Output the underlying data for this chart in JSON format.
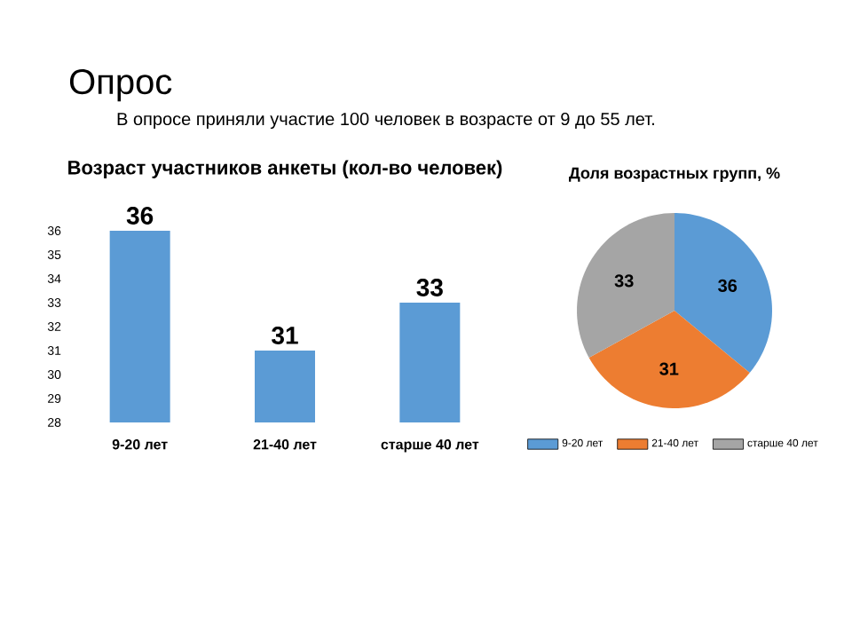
{
  "chart_data": [
    {
      "type": "other",
      "title": "Опрос",
      "subtitle": "В опросе приняли участие 100 человек в возрасте от 9 до 55 лет."
    },
    {
      "type": "bar",
      "title": "Возраст участников анкеты (кол-во человек)",
      "categories": [
        "9-20 лет",
        "21-40 лет",
        "старше 40 лет"
      ],
      "values": [
        36,
        31,
        33
      ],
      "color": "#5b9bd5",
      "ylim": [
        28,
        36
      ],
      "yticks": [
        28,
        29,
        30,
        31,
        32,
        33,
        34,
        35,
        36
      ],
      "data_labels": true
    },
    {
      "type": "pie",
      "title": "Доля возрастных групп, %",
      "categories": [
        "9-20 лет",
        "21-40 лет",
        "старше 40 лет"
      ],
      "values": [
        36,
        31,
        33
      ],
      "colors": [
        "#5b9bd5",
        "#ed7d31",
        "#a5a5a5"
      ],
      "data_labels": true,
      "legend": "bottom"
    }
  ]
}
